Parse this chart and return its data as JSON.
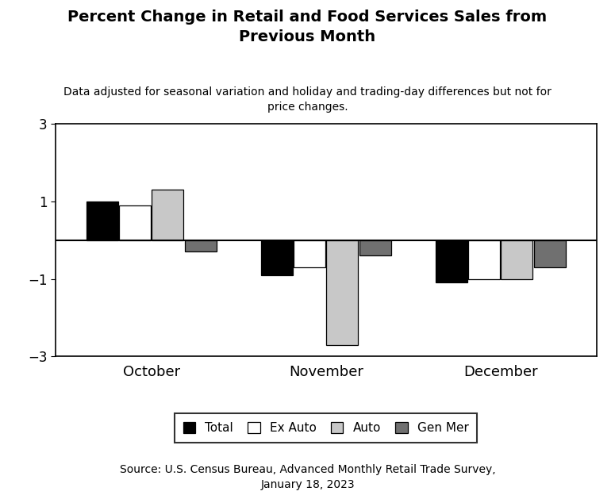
{
  "title": "Percent Change in Retail and Food Services Sales from\nPrevious Month",
  "subtitle": "Data adjusted for seasonal variation and holiday and trading-day differences but not for\nprice changes.",
  "source": "Source: U.S. Census Bureau, Advanced Monthly Retail Trade Survey,\nJanuary 18, 2023",
  "months": [
    "October",
    "November",
    "December"
  ],
  "series": {
    "Total": [
      1.0,
      -0.9,
      -1.1
    ],
    "Ex Auto": [
      0.9,
      -0.7,
      -1.0
    ],
    "Auto": [
      1.3,
      -2.7,
      -1.0
    ],
    "Gen Mer": [
      -0.3,
      -0.4,
      -0.7
    ]
  },
  "colors": {
    "Total": "#000000",
    "Ex Auto": "#ffffff",
    "Auto": "#c8c8c8",
    "Gen Mer": "#707070"
  },
  "bar_edge_color": "#000000",
  "ylim": [
    -3,
    3
  ],
  "yticks": [
    -3,
    -1,
    1,
    3
  ],
  "background_color": "#ffffff",
  "title_fontsize": 14,
  "subtitle_fontsize": 10,
  "source_fontsize": 10,
  "tick_fontsize": 12,
  "month_fontsize": 13,
  "legend_fontsize": 11
}
